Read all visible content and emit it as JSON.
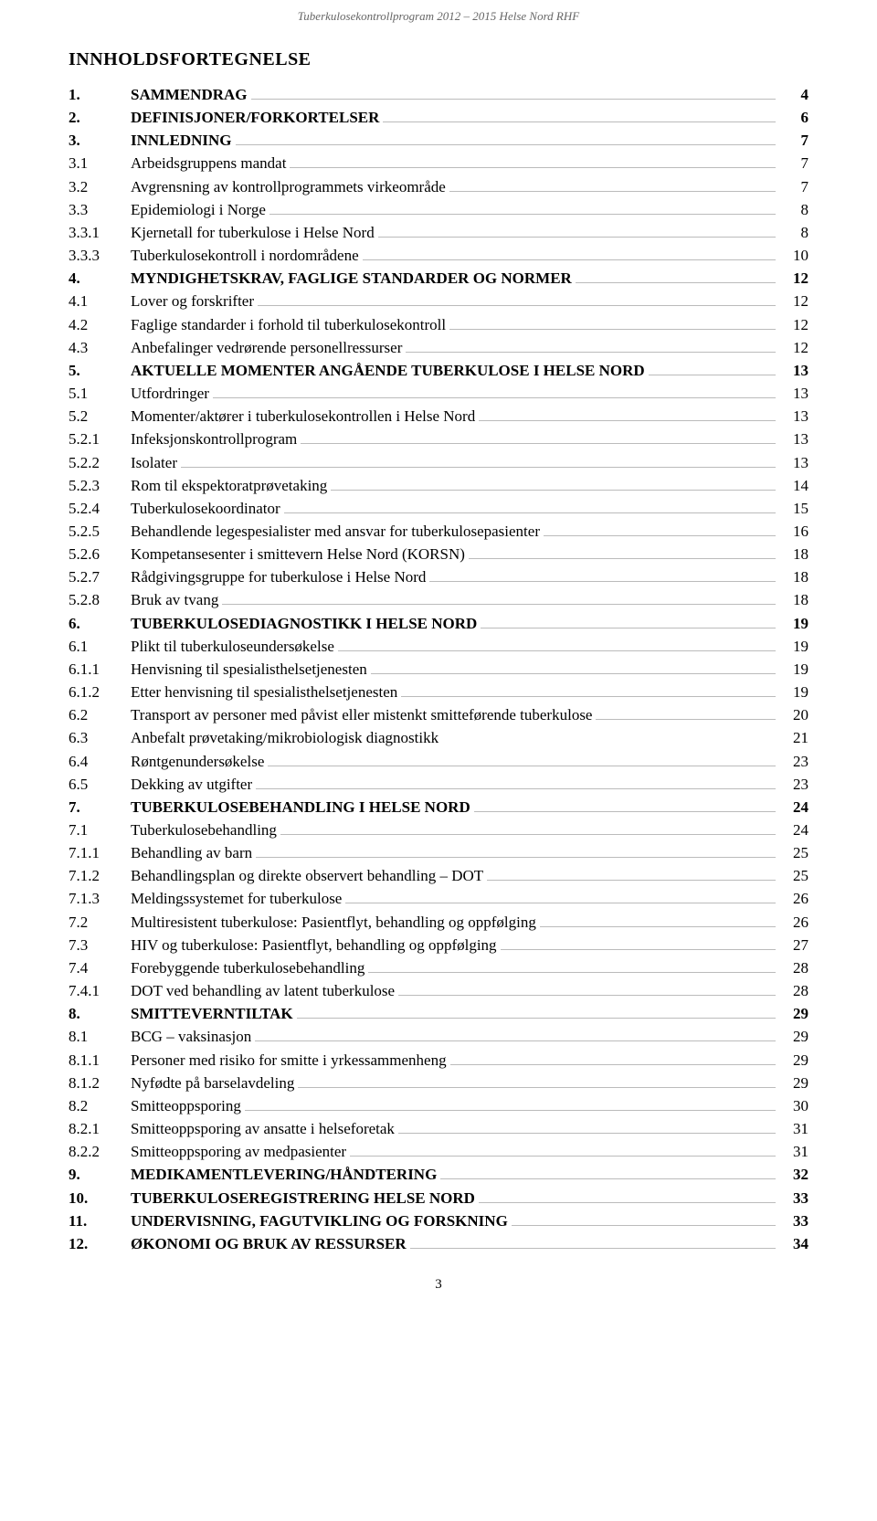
{
  "header": "Tuberkulosekontrollprogram 2012 – 2015 Helse Nord RHF",
  "title": "INNHOLDSFORTEGNELSE",
  "footerPage": "3",
  "entries": [
    {
      "num": "1.",
      "title": "SAMMENDRAG",
      "page": "4",
      "bold": true
    },
    {
      "num": "2.",
      "title": "DEFINISJONER/FORKORTELSER",
      "page": "6",
      "bold": true
    },
    {
      "num": "3.",
      "title": "INNLEDNING",
      "page": "7",
      "bold": true
    },
    {
      "num": "3.1",
      "title": "Arbeidsgruppens mandat",
      "page": "7",
      "bold": false
    },
    {
      "num": "3.2",
      "title": "Avgrensning av kontrollprogrammets virkeområde",
      "page": "7",
      "bold": false
    },
    {
      "num": "3.3",
      "title": "Epidemiologi i Norge",
      "page": "8",
      "bold": false
    },
    {
      "num": "3.3.1",
      "title": "Kjernetall for tuberkulose i Helse Nord",
      "page": "8",
      "bold": false
    },
    {
      "num": "3.3.3",
      "title": "Tuberkulosekontroll i nordområdene",
      "page": "10",
      "bold": false
    },
    {
      "num": "4.",
      "title": "MYNDIGHETSKRAV, FAGLIGE STANDARDER OG NORMER",
      "page": "12",
      "bold": true
    },
    {
      "num": "4.1",
      "title": "Lover og forskrifter",
      "page": "12",
      "bold": false
    },
    {
      "num": "4.2",
      "title": "Faglige standarder i forhold til tuberkulosekontroll",
      "page": "12",
      "bold": false
    },
    {
      "num": "4.3",
      "title": "Anbefalinger vedrørende personellressurser",
      "page": "12",
      "bold": false
    },
    {
      "num": "5.",
      "title": "AKTUELLE MOMENTER ANGÅENDE TUBERKULOSE I HELSE NORD",
      "page": "13",
      "bold": true
    },
    {
      "num": "5.1",
      "title": "Utfordringer",
      "page": "13",
      "bold": false
    },
    {
      "num": "5.2",
      "title": "Momenter/aktører i tuberkulosekontrollen i Helse Nord",
      "page": "13",
      "bold": false
    },
    {
      "num": "5.2.1",
      "title": "Infeksjonskontrollprogram",
      "page": "13",
      "bold": false
    },
    {
      "num": "5.2.2",
      "title": "Isolater",
      "page": "13",
      "bold": false
    },
    {
      "num": "5.2.3",
      "title": "Rom til ekspektoratprøvetaking",
      "page": "14",
      "bold": false
    },
    {
      "num": "5.2.4",
      "title": "Tuberkulosekoordinator",
      "page": "15",
      "bold": false
    },
    {
      "num": "5.2.5",
      "title": "Behandlende legespesialister med ansvar for tuberkulosepasienter",
      "page": "16",
      "bold": false
    },
    {
      "num": "5.2.6",
      "title": "Kompetansesenter i smittevern Helse Nord (KORSN)",
      "page": "18",
      "bold": false
    },
    {
      "num": "5.2.7",
      "title": "Rådgivingsgruppe for tuberkulose i Helse Nord",
      "page": "18",
      "bold": false
    },
    {
      "num": "5.2.8",
      "title": "Bruk av tvang",
      "page": "18",
      "bold": false
    },
    {
      "num": "6.",
      "title": "TUBERKULOSEDIAGNOSTIKK I HELSE NORD",
      "page": "19",
      "bold": true
    },
    {
      "num": "6.1",
      "title": "Plikt til tuberkuloseundersøkelse",
      "page": "19",
      "bold": false
    },
    {
      "num": "6.1.1",
      "title": "Henvisning til spesialisthelsetjenesten",
      "page": "19",
      "bold": false
    },
    {
      "num": "6.1.2",
      "title": "Etter henvisning til spesialisthelsetjenesten",
      "page": "19",
      "bold": false
    },
    {
      "num": "6.2",
      "title": "Transport av personer med påvist eller mistenkt smitteførende tuberkulose",
      "page": "20",
      "bold": false
    },
    {
      "num": "6.3",
      "title": "Anbefalt prøvetaking/mikrobiologisk diagnostikk",
      "page": "21",
      "bold": false,
      "noLeader": true
    },
    {
      "num": "6.4",
      "title": "Røntgenundersøkelse",
      "page": "23",
      "bold": false
    },
    {
      "num": "6.5",
      "title": "Dekking av utgifter",
      "page": "23",
      "bold": false
    },
    {
      "num": "7.",
      "title": "TUBERKULOSEBEHANDLING I HELSE NORD",
      "page": "24",
      "bold": true
    },
    {
      "num": "7.1",
      "title": "Tuberkulosebehandling",
      "page": "24",
      "bold": false
    },
    {
      "num": "7.1.1",
      "title": "Behandling av barn",
      "page": "25",
      "bold": false
    },
    {
      "num": "7.1.2",
      "title": "Behandlingsplan og direkte observert behandling – DOT",
      "page": "25",
      "bold": false
    },
    {
      "num": "7.1.3",
      "title": "Meldingssystemet for tuberkulose",
      "page": "26",
      "bold": false
    },
    {
      "num": "7.2",
      "title": "Multiresistent tuberkulose: Pasientflyt, behandling og oppfølging",
      "page": "26",
      "bold": false
    },
    {
      "num": "7.3",
      "title": "HIV og tuberkulose: Pasientflyt, behandling og oppfølging",
      "page": "27",
      "bold": false
    },
    {
      "num": "7.4",
      "title": "Forebyggende tuberkulosebehandling",
      "page": "28",
      "bold": false
    },
    {
      "num": "7.4.1",
      "title": "DOT ved  behandling av latent tuberkulose",
      "page": "28",
      "bold": false
    },
    {
      "num": "8.",
      "title": "SMITTEVERNTILTAK",
      "page": "29",
      "bold": true
    },
    {
      "num": "8.1",
      "title": "BCG – vaksinasjon",
      "page": "29",
      "bold": false
    },
    {
      "num": "8.1.1",
      "title": "Personer med risiko for smitte i yrkessammenheng",
      "page": "29",
      "bold": false
    },
    {
      "num": "8.1.2",
      "title": "Nyfødte på barselavdeling",
      "page": "29",
      "bold": false
    },
    {
      "num": "8.2",
      "title": "Smitteoppsporing",
      "page": "30",
      "bold": false
    },
    {
      "num": "8.2.1",
      "title": "Smitteoppsporing av ansatte i helseforetak",
      "page": "31",
      "bold": false
    },
    {
      "num": "8.2.2",
      "title": "Smitteoppsporing av medpasienter",
      "page": "31",
      "bold": false
    },
    {
      "num": "9.",
      "title": "MEDIKAMENTLEVERING/HÅNDTERING",
      "page": "32",
      "bold": true
    },
    {
      "num": "10.",
      "title": "TUBERKULOSEREGISTRERING HELSE NORD",
      "page": "33",
      "bold": true
    },
    {
      "num": "11.",
      "title": "UNDERVISNING, FAGUTVIKLING OG FORSKNING",
      "page": "33",
      "bold": true
    },
    {
      "num": "12.",
      "title": "ØKONOMI OG BRUK AV RESSURSER",
      "page": "34",
      "bold": true
    }
  ]
}
